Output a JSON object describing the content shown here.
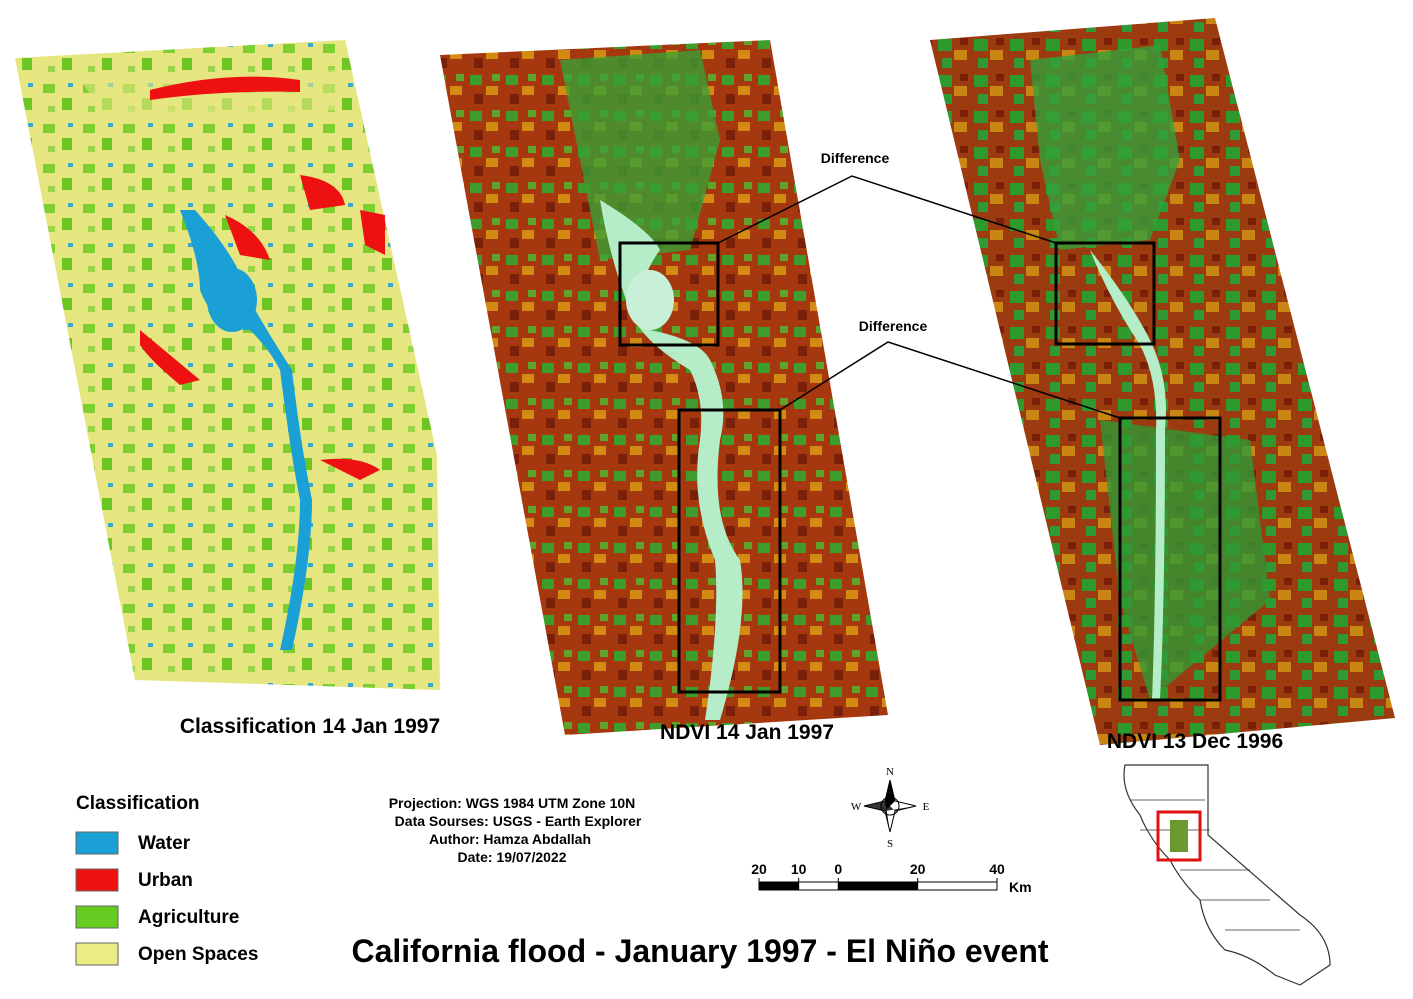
{
  "title": "California flood - January 1997 - El Niño event",
  "panels": [
    {
      "label": "Classification 14 Jan 1997"
    },
    {
      "label": "NDVI 14 Jan 1997"
    },
    {
      "label": "NDVI 13 Dec 1996"
    }
  ],
  "annotations": [
    "Difference",
    "Difference"
  ],
  "legend": {
    "title": "Classification",
    "items": [
      {
        "label": "Water",
        "color": "#1ba0d6"
      },
      {
        "label": "Urban",
        "color": "#ee1111"
      },
      {
        "label": "Agriculture",
        "color": "#66cc22"
      },
      {
        "label": "Open Spaces",
        "color": "#ecec84"
      }
    ]
  },
  "metadata": [
    "Projection: WGS 1984 UTM Zone 10N",
    "Data Sourses: USGS - Earth Explorer",
    "Author: Hamza Abdallah",
    "Date: 19/07/2022"
  ],
  "scale_bar": {
    "ticks": [
      {
        "value": -20,
        "label": "20"
      },
      {
        "value": -10,
        "label": "10"
      },
      0,
      20,
      40
    ],
    "unit": "Km"
  },
  "compass": [
    "N",
    "E",
    "S",
    "W"
  ]
}
